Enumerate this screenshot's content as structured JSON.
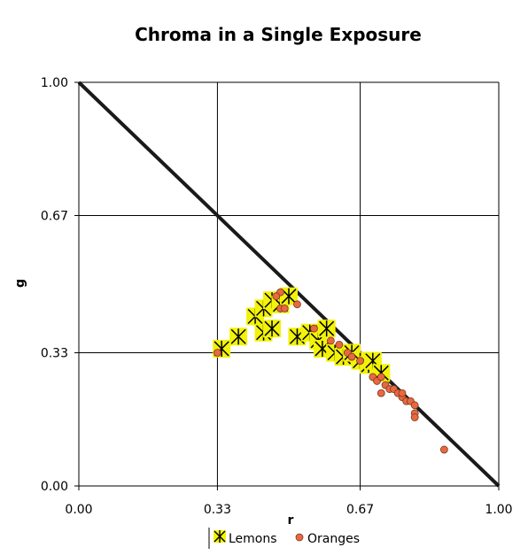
{
  "chart_data": {
    "type": "scatter",
    "title": "Chroma in a Single Exposure",
    "xlabel": "r",
    "ylabel": "g",
    "xlim": [
      0,
      1
    ],
    "ylim": [
      0,
      1
    ],
    "x_ticks": [
      "0.00",
      "0.33",
      "0.67",
      "1.00"
    ],
    "y_ticks": [
      "0.00",
      "0.33",
      "0.67",
      "1.00"
    ],
    "grid": true,
    "reference_line": {
      "from": [
        0,
        1
      ],
      "to": [
        1,
        0
      ]
    },
    "legend_position": "bottom",
    "series": [
      {
        "name": "Lemons",
        "marker": "star",
        "color": "#f2f20a",
        "points": [
          [
            0.34,
            0.34
          ],
          [
            0.38,
            0.37
          ],
          [
            0.42,
            0.42
          ],
          [
            0.44,
            0.44
          ],
          [
            0.46,
            0.46
          ],
          [
            0.48,
            0.45
          ],
          [
            0.5,
            0.47
          ],
          [
            0.44,
            0.38
          ],
          [
            0.46,
            0.39
          ],
          [
            0.52,
            0.37
          ],
          [
            0.55,
            0.38
          ],
          [
            0.57,
            0.36
          ],
          [
            0.59,
            0.39
          ],
          [
            0.58,
            0.34
          ],
          [
            0.61,
            0.33
          ],
          [
            0.63,
            0.32
          ],
          [
            0.65,
            0.33
          ],
          [
            0.67,
            0.31
          ],
          [
            0.69,
            0.3
          ],
          [
            0.7,
            0.31
          ],
          [
            0.72,
            0.28
          ]
        ]
      },
      {
        "name": "Oranges",
        "marker": "circle",
        "color": "#e8683f",
        "points": [
          [
            0.33,
            0.33
          ],
          [
            0.48,
            0.48
          ],
          [
            0.47,
            0.47
          ],
          [
            0.48,
            0.44
          ],
          [
            0.49,
            0.44
          ],
          [
            0.52,
            0.45
          ],
          [
            0.56,
            0.39
          ],
          [
            0.6,
            0.36
          ],
          [
            0.62,
            0.35
          ],
          [
            0.64,
            0.33
          ],
          [
            0.65,
            0.32
          ],
          [
            0.67,
            0.31
          ],
          [
            0.7,
            0.27
          ],
          [
            0.71,
            0.26
          ],
          [
            0.72,
            0.27
          ],
          [
            0.72,
            0.23
          ],
          [
            0.73,
            0.25
          ],
          [
            0.74,
            0.24
          ],
          [
            0.75,
            0.24
          ],
          [
            0.76,
            0.23
          ],
          [
            0.77,
            0.22
          ],
          [
            0.77,
            0.23
          ],
          [
            0.78,
            0.21
          ],
          [
            0.79,
            0.21
          ],
          [
            0.8,
            0.2
          ],
          [
            0.8,
            0.18
          ],
          [
            0.8,
            0.17
          ],
          [
            0.87,
            0.09
          ]
        ]
      }
    ]
  }
}
